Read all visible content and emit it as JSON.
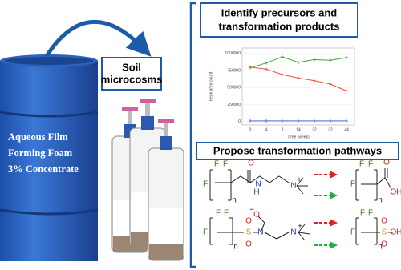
{
  "source": {
    "lines": [
      "Aqueous Film",
      "Forming Foam",
      "3% Concentrate"
    ]
  },
  "microcosms": {
    "lines": [
      "Soil",
      "microcosms"
    ]
  },
  "identify": {
    "lines": [
      "Identify precursors and",
      "transformation products"
    ]
  },
  "chart_data": {
    "type": "line",
    "categories": [
      "0",
      "4",
      "8",
      "14",
      "22",
      "32",
      "44"
    ],
    "x_label": "Time (week)",
    "y_label": "Peak area count",
    "ylim": [
      -50000,
      1080000
    ],
    "yticks": [
      0,
      250000,
      500000,
      750000,
      1000000
    ],
    "series": [
      {
        "color": "#3aa83a",
        "values": [
          790000,
          860000,
          950000,
          870000,
          910000,
          900000,
          940000
        ]
      },
      {
        "color": "#e8503a",
        "values": [
          800000,
          770000,
          690000,
          640000,
          600000,
          550000,
          450000
        ]
      },
      {
        "color": "#4a6fd8",
        "values": [
          10000,
          10000,
          10000,
          10000,
          10000,
          10000,
          10000
        ]
      }
    ]
  },
  "pathways": {
    "title": "Propose transformation pathways",
    "structures": [
      {
        "atoms": [
          "F",
          "F",
          "F",
          "n",
          "O",
          "H",
          "N",
          "N",
          "+"
        ]
      },
      {
        "atoms": [
          "F",
          "F",
          "F",
          "n",
          "O",
          "OH"
        ]
      },
      {
        "atoms": [
          "F",
          "F",
          "F",
          "n",
          "O",
          "O",
          "S",
          "O",
          "N",
          "N",
          "+",
          "−"
        ]
      },
      {
        "atoms": [
          "F",
          "F",
          "F",
          "n",
          "O",
          "S",
          "OH",
          "O"
        ]
      }
    ]
  }
}
